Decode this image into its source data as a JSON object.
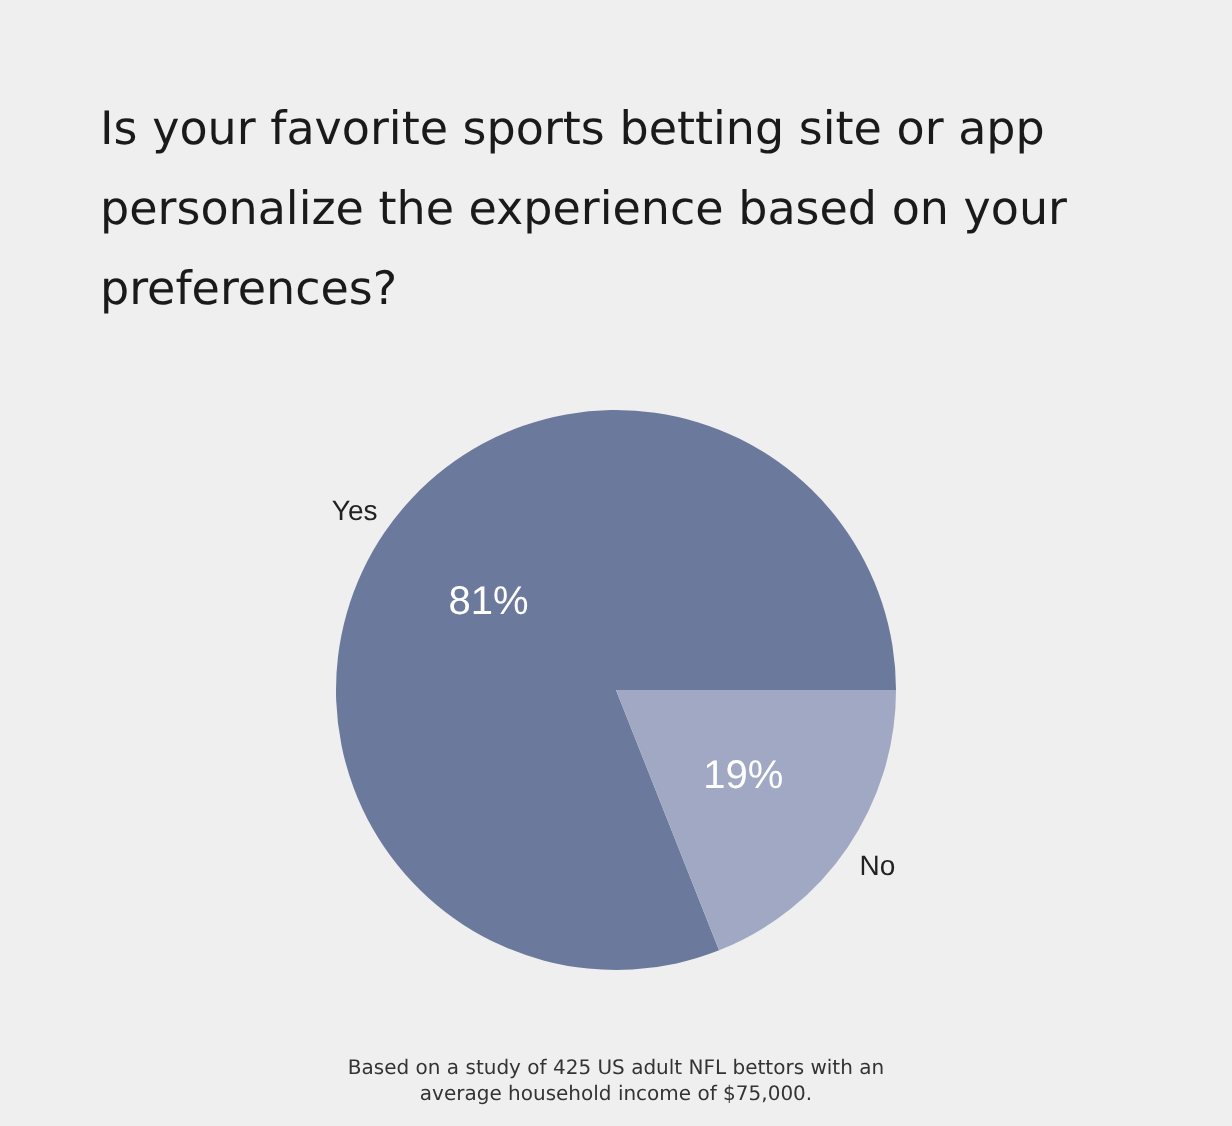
{
  "chart_data": {
    "type": "pie",
    "title": "Is your favorite sports betting site or app personalize the experience based on your preferences?",
    "categories": [
      "Yes",
      "No"
    ],
    "values": [
      81,
      19
    ],
    "colors": [
      "#6b7a9c",
      "#a0a8c4"
    ],
    "value_labels": [
      "81%",
      "19%"
    ],
    "legend": false,
    "annotations": [
      "Based on a study of 425 US adult NFL bettors with an average household income of $75,000."
    ]
  }
}
